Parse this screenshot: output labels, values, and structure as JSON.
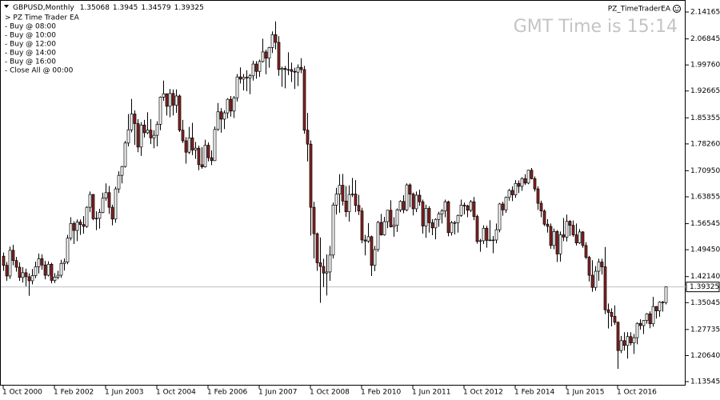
{
  "chart_data": {
    "type": "candlestick",
    "title": "GBPUSD,Monthly",
    "x": [
      "1 Oct 2000",
      null,
      null,
      null,
      null,
      null,
      null,
      null,
      null,
      null,
      null,
      null,
      null,
      null,
      null,
      null,
      "1 Feb 2002",
      null,
      null,
      null,
      null,
      null,
      null,
      null,
      null,
      null,
      null,
      null,
      null,
      null,
      null,
      null,
      "1 Jun 2003",
      null,
      null,
      null,
      null,
      null,
      null,
      null,
      null,
      null,
      null,
      null,
      null,
      null,
      null,
      null,
      "1 Oct 2004",
      null,
      null,
      null,
      null,
      null,
      null,
      null,
      null,
      null,
      null,
      null,
      null,
      null,
      null,
      null,
      "1 Feb 2006",
      null,
      null,
      null,
      null,
      null,
      null,
      null,
      null,
      null,
      null,
      null,
      null,
      null,
      null,
      null,
      "1 Jun 2007",
      null,
      null,
      null,
      null,
      null,
      null,
      null,
      null,
      null,
      null,
      null,
      null,
      null,
      null,
      null,
      "1 Oct 2008",
      null,
      null,
      null,
      null,
      null,
      null,
      null,
      null,
      null,
      null,
      null,
      null,
      null,
      null,
      null,
      "1 Feb 2010",
      null,
      null,
      null,
      null,
      null,
      null,
      null,
      null,
      null,
      null,
      null,
      null,
      null,
      null,
      null,
      "1 Jun 2011",
      null,
      null,
      null,
      null,
      null,
      null,
      null,
      null,
      null,
      null,
      null,
      null,
      null,
      null,
      null,
      "1 Oct 2012",
      null,
      null,
      null,
      null,
      null,
      null,
      null,
      null,
      null,
      null,
      null,
      null,
      null,
      null,
      null,
      "1 Feb 2014",
      null,
      null,
      null,
      null,
      null,
      null,
      null,
      null,
      null,
      null,
      null,
      null,
      null,
      null,
      null,
      "1 Jun 2015",
      null,
      null,
      null,
      null,
      null,
      null,
      null,
      null,
      null,
      null,
      null,
      null,
      null,
      null,
      null,
      "1 Oct 2016",
      null,
      null,
      null,
      null,
      null,
      null,
      null,
      null,
      null,
      null,
      null,
      null,
      null,
      null,
      null
    ],
    "open": [
      1.477,
      1.452,
      1.423,
      1.493,
      1.465,
      1.447,
      1.419,
      1.432,
      1.421,
      1.41,
      1.424,
      1.448,
      1.47,
      1.453,
      1.425,
      1.455,
      1.411,
      1.42,
      1.425,
      1.457,
      1.461,
      1.526,
      1.566,
      1.547,
      1.57,
      1.563,
      1.558,
      1.61,
      1.645,
      1.579,
      1.58,
      1.596,
      1.635,
      1.65,
      1.61,
      1.578,
      1.66,
      1.697,
      1.721,
      1.785,
      1.821,
      1.864,
      1.838,
      1.774,
      1.834,
      1.813,
      1.82,
      1.799,
      1.806,
      1.836,
      1.91,
      1.919,
      1.885,
      1.92,
      1.888,
      1.913,
      1.82,
      1.791,
      1.76,
      1.799,
      1.766,
      1.771,
      1.726,
      1.72,
      1.779,
      1.745,
      1.737,
      1.822,
      1.87,
      1.85,
      1.867,
      1.904,
      1.872,
      1.908,
      1.965,
      1.959,
      1.964,
      1.962,
      1.968,
      2.0,
      1.98,
      2.007,
      2.033,
      2.016,
      2.045,
      2.08,
      2.059,
      1.985,
      1.988,
      1.985,
      1.985,
      1.98,
      1.978,
      1.991,
      1.985,
      1.82,
      1.782,
      1.61,
      1.538,
      1.459,
      1.449,
      1.431,
      1.434,
      1.48,
      1.616,
      1.646,
      1.67,
      1.627,
      1.598,
      1.645,
      1.646,
      1.615,
      1.6,
      1.521,
      1.518,
      1.53,
      1.452,
      1.495,
      1.569,
      1.535,
      1.571,
      1.602,
      1.557,
      1.561,
      1.603,
      1.626,
      1.603,
      1.671,
      1.646,
      1.606,
      1.643,
      1.625,
      1.559,
      1.607,
      1.568,
      1.554,
      1.577,
      1.592,
      1.6,
      1.625,
      1.541,
      1.568,
      1.568,
      1.588,
      1.616,
      1.614,
      1.602,
      1.625,
      1.585,
      1.517,
      1.519,
      1.553,
      1.52,
      1.521,
      1.521,
      1.549,
      1.619,
      1.603,
      1.637,
      1.656,
      1.644,
      1.675,
      1.667,
      1.688,
      1.676,
      1.711,
      1.688,
      1.66,
      1.621,
      1.6,
      1.564,
      1.558,
      1.506,
      1.544,
      1.483,
      1.535,
      1.529,
      1.572,
      1.561,
      1.535,
      1.513,
      1.543,
      1.506,
      1.474,
      1.425,
      1.392,
      1.436,
      1.461,
      1.448,
      1.331,
      1.324,
      1.313,
      1.297,
      1.22,
      1.247,
      1.234,
      1.258,
      1.241,
      1.255,
      1.294,
      1.288,
      1.302,
      1.32,
      1.293,
      1.34,
      1.328,
      1.352,
      1.35068
    ],
    "high": [
      1.487,
      1.461,
      1.503,
      1.508,
      1.475,
      1.46,
      1.447,
      1.443,
      1.43,
      1.442,
      1.462,
      1.484,
      1.482,
      1.464,
      1.463,
      1.459,
      1.431,
      1.437,
      1.467,
      1.471,
      1.535,
      1.583,
      1.572,
      1.577,
      1.577,
      1.586,
      1.613,
      1.653,
      1.646,
      1.599,
      1.606,
      1.65,
      1.675,
      1.668,
      1.617,
      1.666,
      1.708,
      1.723,
      1.791,
      1.864,
      1.905,
      1.874,
      1.85,
      1.842,
      1.848,
      1.869,
      1.85,
      1.82,
      1.844,
      1.912,
      1.955,
      1.92,
      1.932,
      1.931,
      1.931,
      1.917,
      1.848,
      1.801,
      1.829,
      1.84,
      1.788,
      1.778,
      1.774,
      1.794,
      1.787,
      1.765,
      1.83,
      1.894,
      1.88,
      1.874,
      1.907,
      1.913,
      1.913,
      1.973,
      1.991,
      1.973,
      1.983,
      1.973,
      2.009,
      2.008,
      2.012,
      2.069,
      2.039,
      2.047,
      2.089,
      2.116,
      2.076,
      1.993,
      1.995,
      2.032,
      2.004,
      1.99,
      1.999,
      2.016,
      1.995,
      1.867,
      1.792,
      1.625,
      1.541,
      1.528,
      1.47,
      1.482,
      1.505,
      1.623,
      1.663,
      1.7,
      1.701,
      1.668,
      1.67,
      1.69,
      1.684,
      1.644,
      1.609,
      1.535,
      1.567,
      1.533,
      1.505,
      1.573,
      1.592,
      1.584,
      1.603,
      1.629,
      1.583,
      1.607,
      1.629,
      1.643,
      1.675,
      1.675,
      1.65,
      1.653,
      1.658,
      1.631,
      1.617,
      1.613,
      1.578,
      1.58,
      1.598,
      1.605,
      1.631,
      1.628,
      1.573,
      1.573,
      1.59,
      1.631,
      1.623,
      1.617,
      1.63,
      1.638,
      1.59,
      1.524,
      1.561,
      1.56,
      1.575,
      1.532,
      1.566,
      1.622,
      1.625,
      1.639,
      1.66,
      1.667,
      1.684,
      1.683,
      1.692,
      1.7,
      1.712,
      1.717,
      1.694,
      1.667,
      1.628,
      1.604,
      1.578,
      1.566,
      1.552,
      1.548,
      1.544,
      1.581,
      1.59,
      1.575,
      1.574,
      1.566,
      1.551,
      1.545,
      1.515,
      1.478,
      1.466,
      1.45,
      1.47,
      1.47,
      1.502,
      1.348,
      1.335,
      1.343,
      1.299,
      1.26,
      1.27,
      1.27,
      1.27,
      1.265,
      1.297,
      1.305,
      1.303,
      1.322,
      1.327,
      1.366,
      1.341,
      1.354,
      1.355,
      1.3945
    ],
    "low": [
      1.437,
      1.41,
      1.415,
      1.452,
      1.435,
      1.41,
      1.405,
      1.395,
      1.369,
      1.4,
      1.417,
      1.43,
      1.44,
      1.414,
      1.422,
      1.403,
      1.404,
      1.414,
      1.418,
      1.438,
      1.455,
      1.52,
      1.51,
      1.518,
      1.535,
      1.538,
      1.554,
      1.597,
      1.575,
      1.548,
      1.552,
      1.594,
      1.628,
      1.592,
      1.561,
      1.568,
      1.649,
      1.675,
      1.718,
      1.776,
      1.814,
      1.78,
      1.76,
      1.75,
      1.8,
      1.809,
      1.782,
      1.771,
      1.776,
      1.82,
      1.9,
      1.86,
      1.855,
      1.86,
      1.867,
      1.815,
      1.785,
      1.729,
      1.755,
      1.752,
      1.742,
      1.711,
      1.715,
      1.718,
      1.735,
      1.725,
      1.736,
      1.818,
      1.813,
      1.823,
      1.852,
      1.857,
      1.853,
      1.898,
      1.947,
      1.928,
      1.926,
      1.918,
      1.955,
      1.96,
      1.965,
      2.004,
      1.972,
      1.99,
      2.03,
      2.04,
      1.968,
      1.938,
      1.934,
      1.97,
      1.951,
      1.932,
      1.94,
      1.975,
      1.81,
      1.735,
      1.533,
      1.471,
      1.437,
      1.35,
      1.393,
      1.37,
      1.41,
      1.471,
      1.59,
      1.595,
      1.615,
      1.584,
      1.571,
      1.638,
      1.597,
      1.589,
      1.512,
      1.479,
      1.513,
      1.423,
      1.436,
      1.489,
      1.533,
      1.533,
      1.553,
      1.555,
      1.53,
      1.543,
      1.597,
      1.594,
      1.599,
      1.61,
      1.588,
      1.597,
      1.614,
      1.538,
      1.527,
      1.541,
      1.534,
      1.523,
      1.557,
      1.566,
      1.583,
      1.531,
      1.533,
      1.536,
      1.541,
      1.584,
      1.591,
      1.583,
      1.597,
      1.575,
      1.511,
      1.489,
      1.51,
      1.5,
      1.518,
      1.485,
      1.512,
      1.542,
      1.587,
      1.595,
      1.628,
      1.627,
      1.636,
      1.649,
      1.655,
      1.671,
      1.673,
      1.686,
      1.653,
      1.603,
      1.583,
      1.559,
      1.541,
      1.497,
      1.496,
      1.461,
      1.462,
      1.518,
      1.517,
      1.532,
      1.53,
      1.506,
      1.51,
      1.5,
      1.469,
      1.408,
      1.38,
      1.383,
      1.41,
      1.427,
      1.319,
      1.28,
      1.286,
      1.29,
      1.17,
      1.213,
      1.22,
      1.198,
      1.234,
      1.211,
      1.237,
      1.277,
      1.265,
      1.293,
      1.281,
      1.285,
      1.307,
      1.312,
      1.326,
      1.34579
    ],
    "close": [
      1.452,
      1.423,
      1.493,
      1.465,
      1.447,
      1.419,
      1.432,
      1.421,
      1.41,
      1.424,
      1.448,
      1.47,
      1.453,
      1.425,
      1.455,
      1.411,
      1.42,
      1.425,
      1.457,
      1.461,
      1.526,
      1.566,
      1.547,
      1.57,
      1.563,
      1.558,
      1.61,
      1.645,
      1.579,
      1.58,
      1.596,
      1.635,
      1.65,
      1.61,
      1.578,
      1.66,
      1.697,
      1.721,
      1.785,
      1.821,
      1.864,
      1.838,
      1.774,
      1.834,
      1.813,
      1.82,
      1.799,
      1.806,
      1.836,
      1.91,
      1.919,
      1.885,
      1.92,
      1.888,
      1.913,
      1.82,
      1.791,
      1.76,
      1.799,
      1.766,
      1.771,
      1.726,
      1.72,
      1.779,
      1.745,
      1.737,
      1.822,
      1.87,
      1.85,
      1.867,
      1.904,
      1.872,
      1.908,
      1.965,
      1.959,
      1.964,
      1.962,
      1.968,
      2.0,
      1.98,
      2.007,
      2.033,
      2.016,
      2.045,
      2.08,
      2.059,
      1.985,
      1.988,
      1.985,
      1.985,
      1.98,
      1.978,
      1.991,
      1.985,
      1.82,
      1.782,
      1.61,
      1.538,
      1.459,
      1.449,
      1.431,
      1.434,
      1.48,
      1.616,
      1.646,
      1.67,
      1.627,
      1.598,
      1.645,
      1.646,
      1.615,
      1.6,
      1.521,
      1.518,
      1.53,
      1.452,
      1.495,
      1.569,
      1.535,
      1.571,
      1.602,
      1.557,
      1.561,
      1.603,
      1.626,
      1.603,
      1.671,
      1.646,
      1.606,
      1.643,
      1.625,
      1.559,
      1.607,
      1.568,
      1.554,
      1.577,
      1.592,
      1.6,
      1.625,
      1.541,
      1.568,
      1.568,
      1.588,
      1.616,
      1.614,
      1.602,
      1.625,
      1.585,
      1.517,
      1.519,
      1.553,
      1.52,
      1.521,
      1.521,
      1.549,
      1.619,
      1.603,
      1.637,
      1.656,
      1.644,
      1.675,
      1.667,
      1.688,
      1.676,
      1.711,
      1.688,
      1.66,
      1.621,
      1.6,
      1.564,
      1.558,
      1.506,
      1.544,
      1.483,
      1.535,
      1.529,
      1.572,
      1.561,
      1.535,
      1.513,
      1.543,
      1.506,
      1.474,
      1.425,
      1.392,
      1.436,
      1.461,
      1.448,
      1.331,
      1.324,
      1.313,
      1.297,
      1.22,
      1.247,
      1.234,
      1.258,
      1.241,
      1.255,
      1.294,
      1.288,
      1.302,
      1.32,
      1.293,
      1.34,
      1.328,
      1.352,
      1.35068,
      1.39325
    ],
    "up_color": "#ffffff",
    "down_color": "#8b2323",
    "ylim": [
      1.1246,
      2.17
    ],
    "yticks": [
      2.14165,
      2.06845,
      {
        "value": 1.9976,
        "label": "1.99760"
      },
      1.92665,
      1.85355,
      {
        "value": 1.7826,
        "label": "1.78260"
      },
      {
        "value": 1.7095,
        "label": "1.70950"
      },
      1.63855,
      1.56545,
      {
        "value": 1.4945,
        "label": "1.49450"
      },
      {
        "value": 1.4214,
        "label": "1.42140"
      },
      1.35045,
      1.27735,
      {
        "value": 1.2064,
        "label": "1.20640"
      },
      1.13545
    ],
    "grid": false,
    "bid_line": true
  },
  "expert": {
    "name": "PZ_TimeTraderEA",
    "clock": "GMT Time is 15:14",
    "lines": [
      "> PZ Time Trader EA",
      "- Buy @ 08:00",
      "- Buy @ 10:00",
      "- Buy @ 12:00",
      "- Buy @ 14:00",
      "- Buy @ 16:00",
      "- Close All @ 00:00"
    ]
  }
}
